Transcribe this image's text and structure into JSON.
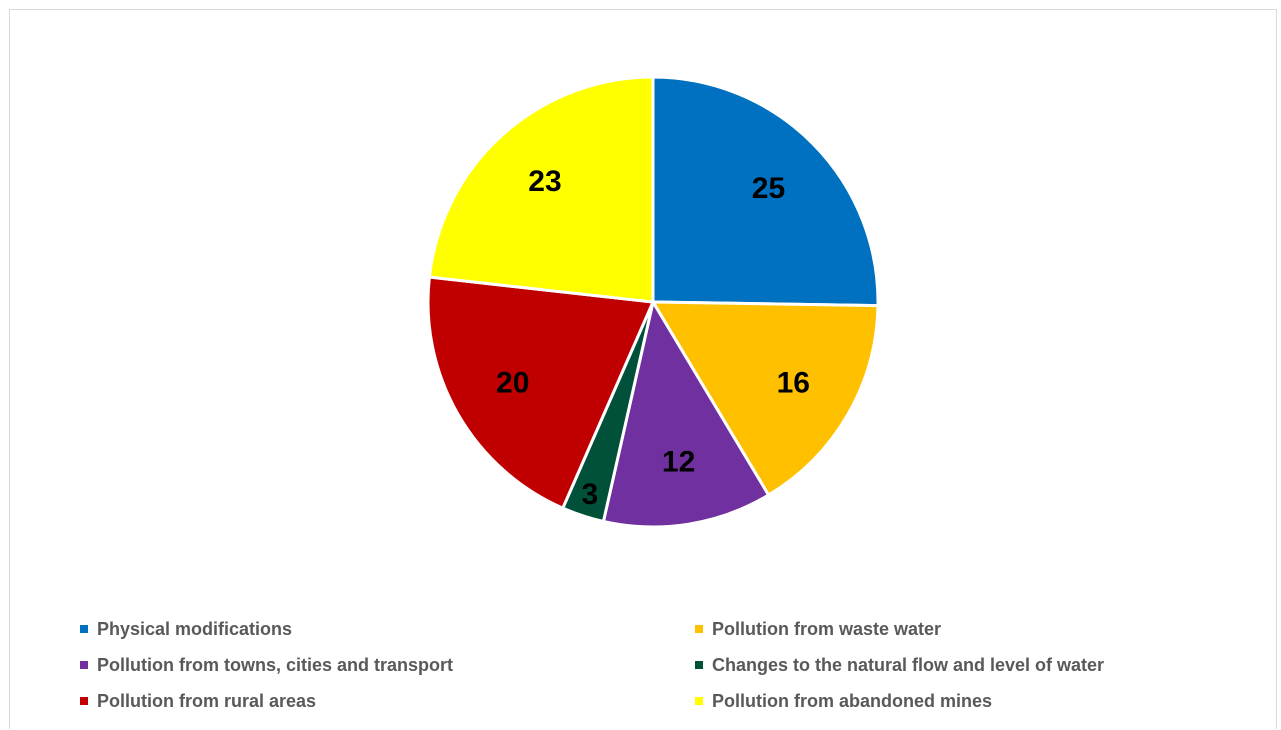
{
  "chart_data": {
    "type": "pie",
    "title": "",
    "data_labels": "inside",
    "legend_position": "bottom",
    "slices": [
      {
        "label": "Physical modifications",
        "value": 25,
        "color": "#0070C0"
      },
      {
        "label": "Pollution from waste water",
        "value": 16,
        "color": "#FFC000"
      },
      {
        "label": "Pollution from towns, cities and transport",
        "value": 12,
        "color": "#7030A0"
      },
      {
        "label": "Changes to the natural flow and level of water",
        "value": 3,
        "color": "#00503A"
      },
      {
        "label": "Pollution from rural areas",
        "value": 20,
        "color": "#C00000"
      },
      {
        "label": "Pollution from abandoned mines",
        "value": 23,
        "color": "#FFFF00"
      }
    ]
  }
}
